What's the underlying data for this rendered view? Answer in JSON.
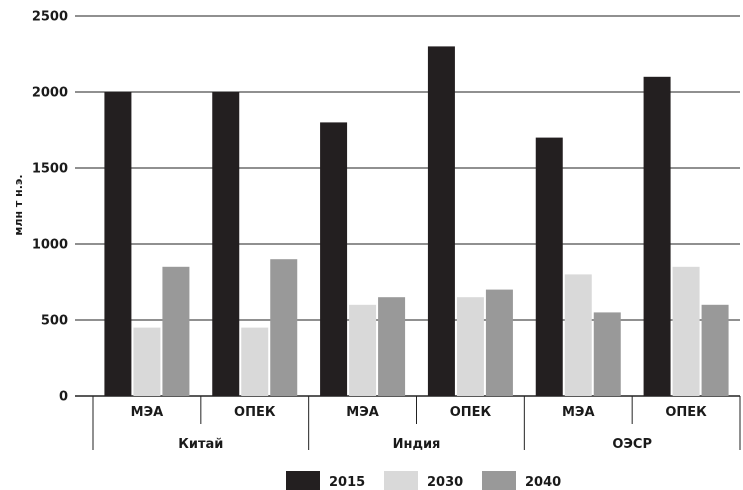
{
  "chart_data": {
    "type": "bar",
    "title": "",
    "ylabel": "млн т н.э.",
    "ylim": [
      0,
      2500
    ],
    "yticks": [
      0,
      500,
      1000,
      1500,
      2000,
      2500
    ],
    "grid": true,
    "legend_position": "bottom",
    "groups": [
      "Китай",
      "Индия",
      "ОЭСР"
    ],
    "subcategories": [
      "МЭА",
      "ОПЕК"
    ],
    "categories": [
      "Китай / МЭА",
      "Китай / ОПЕК",
      "Индия / МЭА",
      "Индия / ОПЕК",
      "ОЭСР / МЭА",
      "ОЭСР / ОПЕК"
    ],
    "series": [
      {
        "name": "2015",
        "color": "#231f20",
        "values": [
          2000,
          2000,
          1800,
          2300,
          1700,
          2100
        ]
      },
      {
        "name": "2030",
        "color": "#d9d9d9",
        "values": [
          450,
          450,
          600,
          650,
          800,
          850
        ]
      },
      {
        "name": "2040",
        "color": "#999999",
        "values": [
          850,
          900,
          650,
          700,
          550,
          600
        ]
      }
    ]
  }
}
